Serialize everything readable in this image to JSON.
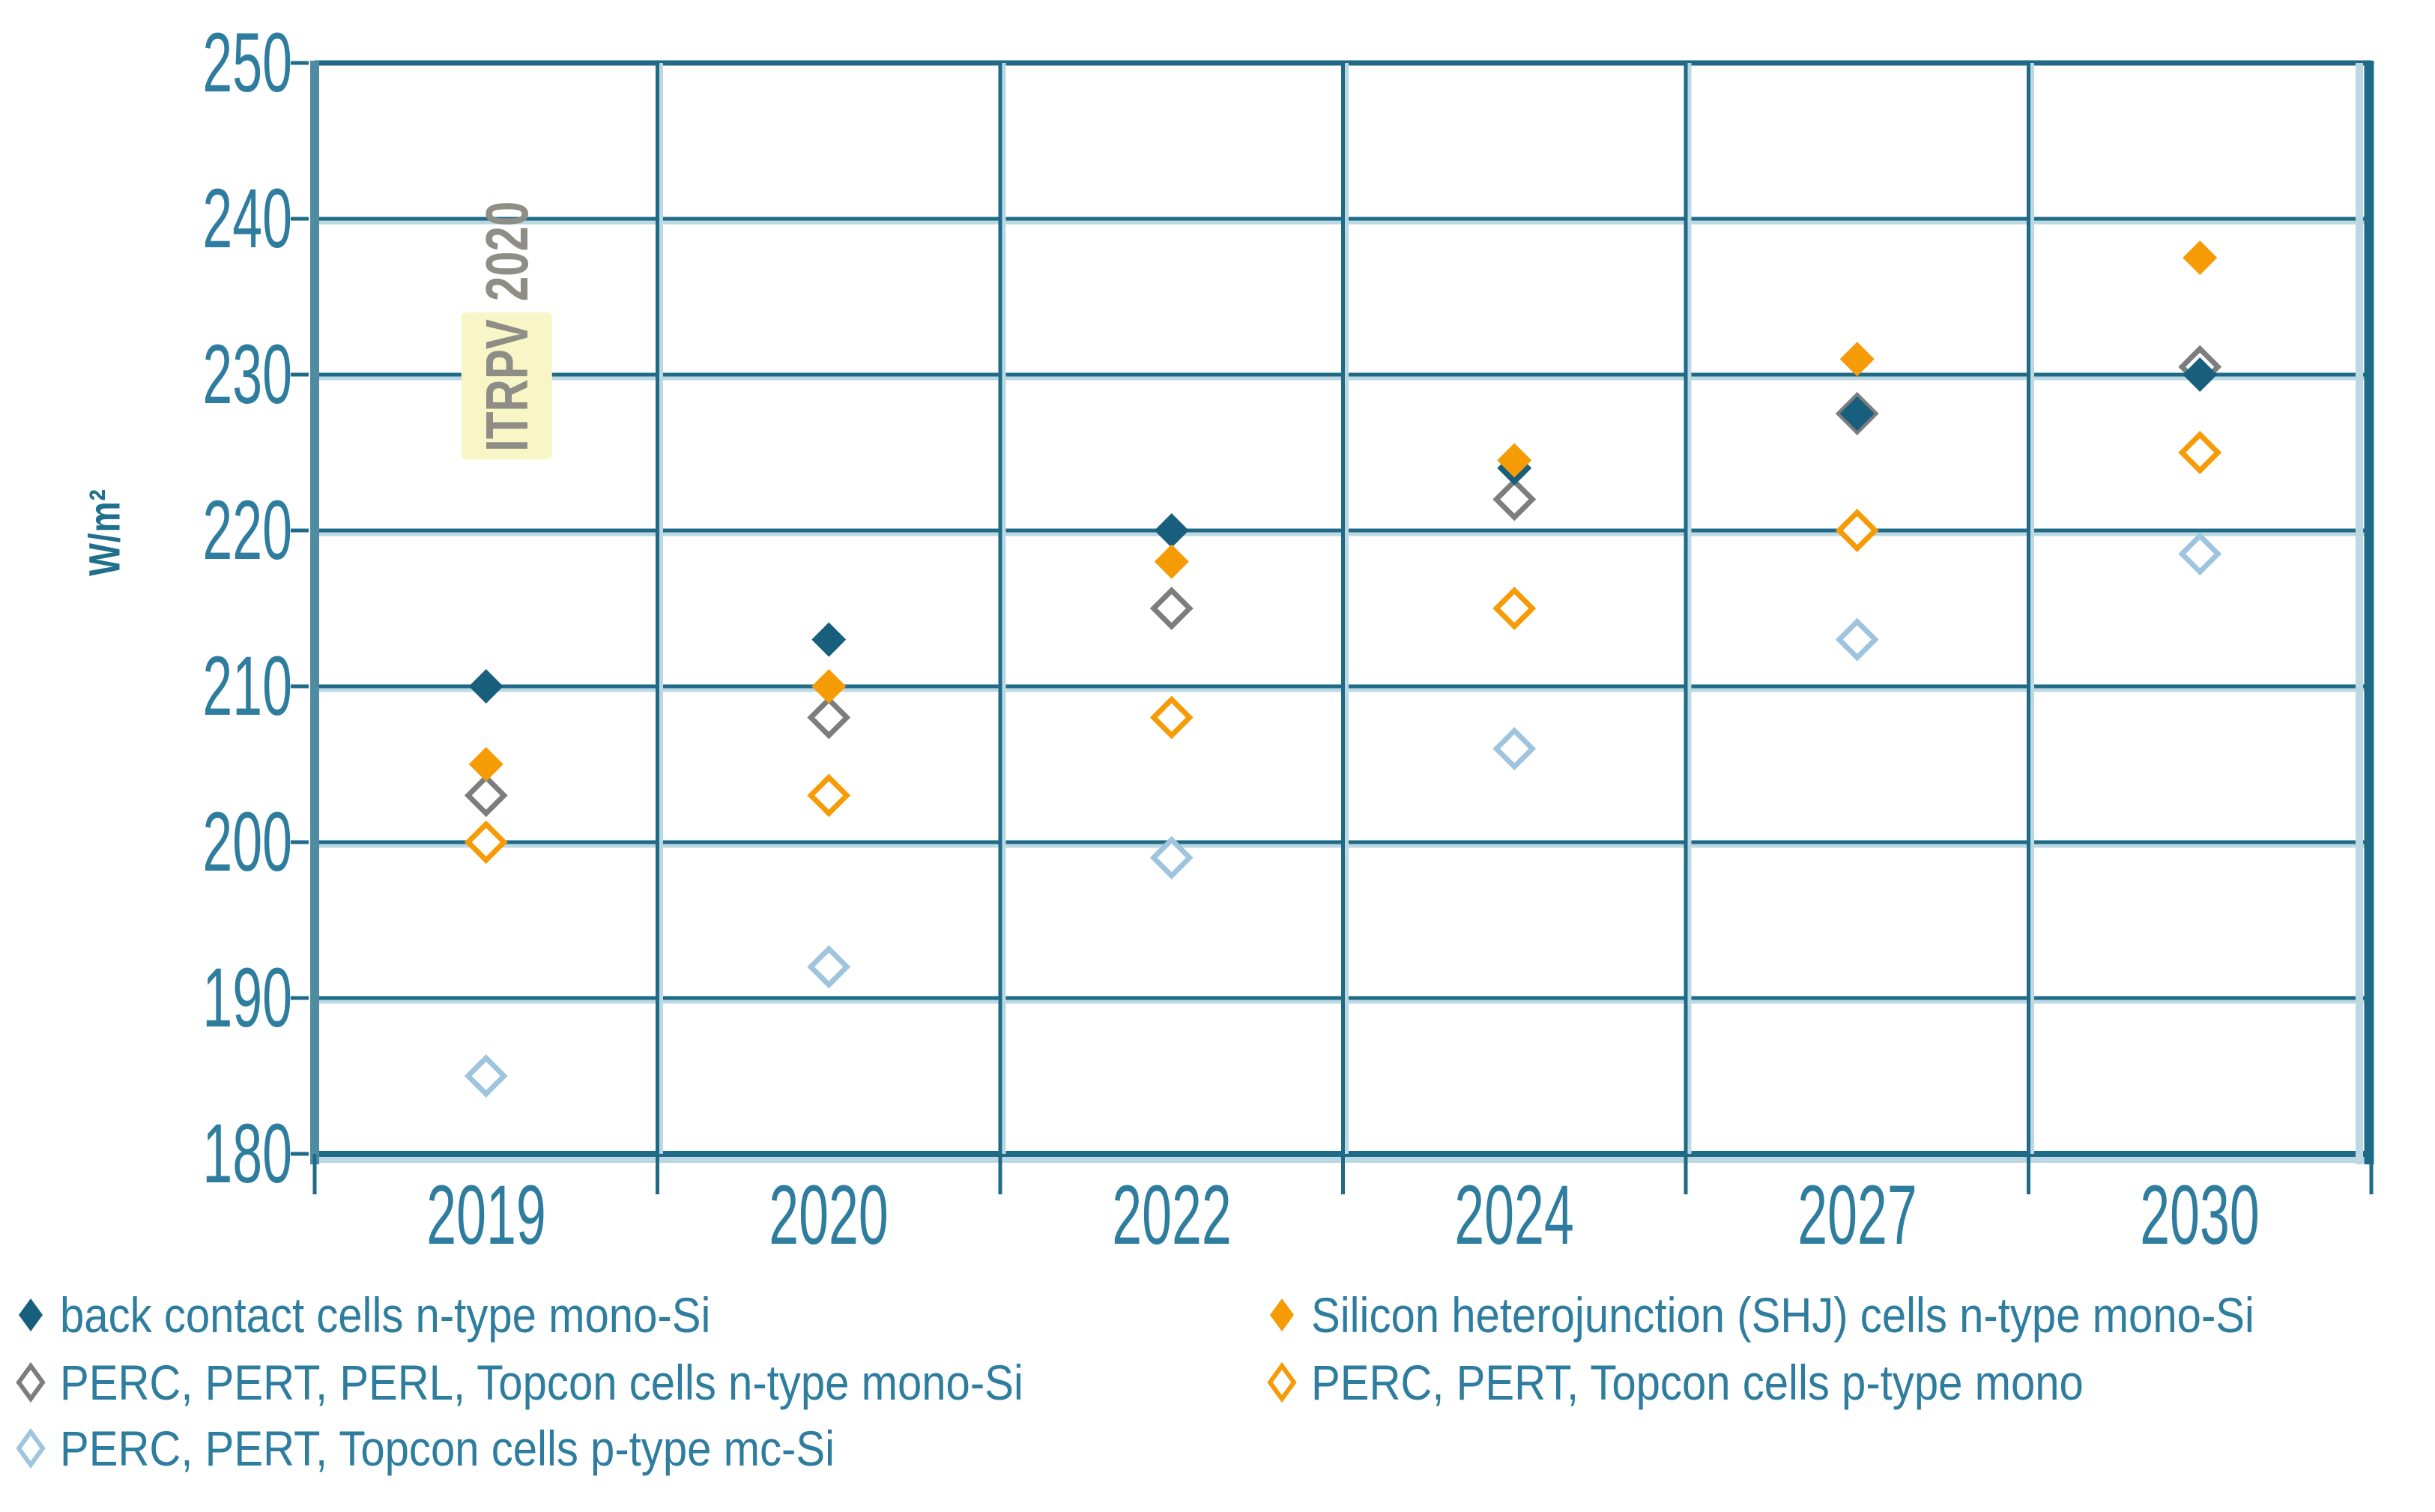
{
  "chart_data": {
    "type": "scatter",
    "title": "",
    "xlabel": "",
    "ylabel": "W/m²",
    "ylim": [
      180,
      250
    ],
    "ytick_step": 10,
    "ytick_labels": [
      "250",
      "240",
      "230",
      "220",
      "210",
      "200",
      "190",
      "180"
    ],
    "grid": true,
    "legend_position": "bottom",
    "categories": [
      "2019",
      "2020",
      "2022",
      "2024",
      "2027",
      "2030"
    ],
    "series": [
      {
        "name": "back contact cells n-type mono-Si",
        "slug": "back-contact-n-type-mono-si",
        "marker": "filled-diamond",
        "color": "#175F7C",
        "values": [
          210,
          213,
          220,
          224,
          227.5,
          230
        ]
      },
      {
        "name": "Silicon heterojunction (SHJ) cells n-type mono-Si",
        "slug": "shj-n-type-mono-si",
        "marker": "filled-diamond",
        "color": "#F59B05",
        "values": [
          205,
          210,
          218,
          224.5,
          231,
          237.5
        ]
      },
      {
        "name": "PERC, PERT, PERL, Topcon cells n-type mono-Si",
        "slug": "perc-pert-perl-topcon-n-type-mono-si",
        "marker": "open-diamond",
        "color": "#7D7D7D",
        "values": [
          203,
          208,
          215,
          222,
          227.5,
          230.5
        ]
      },
      {
        "name": "PERC, PERT, Topcon cells p-type mono",
        "slug": "perc-pert-topcon-p-type-mono",
        "marker": "open-diamond",
        "color": "#F59B05",
        "values": [
          200,
          203,
          208,
          215,
          220,
          225
        ]
      },
      {
        "name": "PERC, PERT, Topcon cells p-type mc-Si",
        "slug": "perc-pert-topcon-p-type-mc-si",
        "marker": "open-diamond",
        "color": "#9FC4DE",
        "values": [
          185,
          192,
          199,
          206,
          213,
          218.5
        ]
      }
    ],
    "annotation": {
      "label": "ITRPV 2020",
      "highlighted_part": "ITRPV",
      "plain_part": "2020",
      "highlight_color": "#F8F6C6",
      "text_color": "#8E8E86"
    }
  },
  "colors": {
    "grid_dark": "#1F6B87",
    "grid_light": "#BCD8E2",
    "axis_band": "#4F8CA2",
    "text": "#2E7D9F"
  }
}
